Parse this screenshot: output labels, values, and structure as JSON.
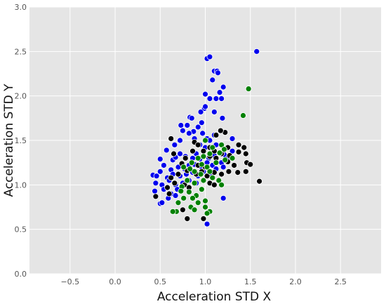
{
  "chart_data": {
    "type": "scatter",
    "title": "",
    "xlabel": "Acceleration STD X",
    "ylabel": "Acceleration STD Y",
    "xlim": [
      -0.95,
      2.95
    ],
    "ylim": [
      0.0,
      3.0
    ],
    "xticks": [
      -0.5,
      0.0,
      0.5,
      1.0,
      1.5,
      2.0,
      2.5
    ],
    "xtick_labels": [
      "−0.5",
      "0.0",
      "0.5",
      "1.0",
      "1.5",
      "2.0",
      "2.5"
    ],
    "yticks": [
      0.0,
      0.5,
      1.0,
      1.5,
      2.0,
      2.5,
      3.0
    ],
    "ytick_labels": [
      "0.0",
      "0.5",
      "1.0",
      "1.5",
      "2.0",
      "2.5",
      "3.0"
    ],
    "grid": true,
    "background": "#e5e5e5",
    "grid_color": "#ffffff",
    "series": [
      {
        "color": "#0000ee",
        "points": [
          [
            1.57,
            2.5
          ],
          [
            1.02,
            2.42
          ],
          [
            1.05,
            2.44
          ],
          [
            1.1,
            2.28
          ],
          [
            1.13,
            2.28
          ],
          [
            1.14,
            2.26
          ],
          [
            1.08,
            2.18
          ],
          [
            1.2,
            2.1
          ],
          [
            1.16,
            2.04
          ],
          [
            1.0,
            2.02
          ],
          [
            1.05,
            1.97
          ],
          [
            1.12,
            1.97
          ],
          [
            1.18,
            1.97
          ],
          [
            0.99,
            1.86
          ],
          [
            1.0,
            1.88
          ],
          [
            0.95,
            1.82
          ],
          [
            1.1,
            1.82
          ],
          [
            0.83,
            1.76
          ],
          [
            0.85,
            1.75
          ],
          [
            1.19,
            1.75
          ],
          [
            0.8,
            1.67
          ],
          [
            0.73,
            1.67
          ],
          [
            0.92,
            1.65
          ],
          [
            0.87,
            1.6
          ],
          [
            0.75,
            1.61
          ],
          [
            0.82,
            1.58
          ],
          [
            0.96,
            1.7
          ],
          [
            0.97,
            1.58
          ],
          [
            1.1,
            1.56
          ],
          [
            1.3,
            1.52
          ],
          [
            1.02,
            1.52
          ],
          [
            1.05,
            1.5
          ],
          [
            0.88,
            1.52
          ],
          [
            0.72,
            1.5
          ],
          [
            0.66,
            1.45
          ],
          [
            0.94,
            1.45
          ],
          [
            1.0,
            1.42
          ],
          [
            1.12,
            1.45
          ],
          [
            0.57,
            1.39
          ],
          [
            0.72,
            1.35
          ],
          [
            0.78,
            1.32
          ],
          [
            0.86,
            1.3
          ],
          [
            0.64,
            1.28
          ],
          [
            0.5,
            1.29
          ],
          [
            0.67,
            1.31
          ],
          [
            0.9,
            1.35
          ],
          [
            0.94,
            1.29
          ],
          [
            1.04,
            1.3
          ],
          [
            1.1,
            1.33
          ],
          [
            1.21,
            1.34
          ],
          [
            1.3,
            1.38
          ],
          [
            0.54,
            1.22
          ],
          [
            0.62,
            1.17
          ],
          [
            0.7,
            1.2
          ],
          [
            0.77,
            1.18
          ],
          [
            0.82,
            1.22
          ],
          [
            0.88,
            1.23
          ],
          [
            0.96,
            1.2
          ],
          [
            1.02,
            1.25
          ],
          [
            1.08,
            1.22
          ],
          [
            1.18,
            1.25
          ],
          [
            1.25,
            1.3
          ],
          [
            0.42,
            1.11
          ],
          [
            0.46,
            1.1
          ],
          [
            0.5,
            1.15
          ],
          [
            0.58,
            1.08
          ],
          [
            0.64,
            1.12
          ],
          [
            0.72,
            1.1
          ],
          [
            0.79,
            1.12
          ],
          [
            0.86,
            1.14
          ],
          [
            0.92,
            1.1
          ],
          [
            0.98,
            1.15
          ],
          [
            1.06,
            1.12
          ],
          [
            1.12,
            1.18
          ],
          [
            1.2,
            1.2
          ],
          [
            0.45,
            1.02
          ],
          [
            0.52,
            1.0
          ],
          [
            0.6,
            1.05
          ],
          [
            0.67,
            1.0
          ],
          [
            0.75,
            1.02
          ],
          [
            0.82,
            1.05
          ],
          [
            0.9,
            1.02
          ],
          [
            0.44,
            0.93
          ],
          [
            0.54,
            0.95
          ],
          [
            0.62,
            0.9
          ],
          [
            0.69,
            0.95
          ],
          [
            0.59,
            0.85
          ],
          [
            0.67,
            0.88
          ],
          [
            0.5,
            0.79
          ],
          [
            0.52,
            0.8
          ],
          [
            1.02,
            0.56
          ],
          [
            1.2,
            0.85
          ]
        ]
      },
      {
        "color": "#000000",
        "points": [
          [
            1.6,
            1.04
          ],
          [
            1.22,
            1.59
          ],
          [
            1.17,
            1.61
          ],
          [
            1.12,
            1.56
          ],
          [
            1.37,
            1.45
          ],
          [
            1.43,
            1.42
          ],
          [
            1.37,
            1.37
          ],
          [
            1.45,
            1.35
          ],
          [
            1.25,
            1.42
          ],
          [
            1.05,
            1.42
          ],
          [
            1.1,
            1.38
          ],
          [
            1.18,
            1.35
          ],
          [
            1.27,
            1.33
          ],
          [
            0.62,
            1.52
          ],
          [
            0.88,
            1.48
          ],
          [
            0.92,
            1.45
          ],
          [
            0.98,
            1.38
          ],
          [
            0.86,
            1.38
          ],
          [
            0.65,
            1.35
          ],
          [
            0.78,
            1.3
          ],
          [
            1.05,
            1.32
          ],
          [
            1.12,
            1.3
          ],
          [
            1.25,
            1.26
          ],
          [
            1.32,
            1.22
          ],
          [
            1.46,
            1.25
          ],
          [
            1.5,
            1.23
          ],
          [
            1.36,
            1.14
          ],
          [
            1.45,
            1.15
          ],
          [
            1.26,
            1.15
          ],
          [
            1.18,
            1.12
          ],
          [
            1.1,
            1.14
          ],
          [
            1.02,
            1.1
          ],
          [
            0.96,
            1.15
          ],
          [
            0.9,
            1.12
          ],
          [
            0.8,
            1.16
          ],
          [
            0.7,
            1.12
          ],
          [
            0.62,
            1.08
          ],
          [
            0.85,
            1.25
          ],
          [
            0.92,
            1.22
          ],
          [
            1.0,
            1.2
          ],
          [
            0.74,
            1.24
          ],
          [
            0.66,
            1.02
          ],
          [
            0.77,
            1.0
          ],
          [
            0.58,
            0.97
          ],
          [
            0.82,
            0.97
          ],
          [
            1.05,
            1.02
          ],
          [
            1.1,
            1.0
          ],
          [
            0.45,
            0.87
          ],
          [
            0.6,
            0.9
          ],
          [
            0.75,
            0.72
          ],
          [
            0.8,
            0.62
          ],
          [
            0.98,
            0.62
          ]
        ]
      },
      {
        "color": "#008000",
        "points": [
          [
            1.48,
            2.08
          ],
          [
            1.42,
            1.78
          ],
          [
            1.0,
            1.5
          ],
          [
            1.08,
            1.42
          ],
          [
            1.18,
            1.45
          ],
          [
            1.21,
            1.4
          ],
          [
            1.22,
            1.28
          ],
          [
            1.3,
            1.3
          ],
          [
            1.16,
            1.36
          ],
          [
            0.98,
            1.32
          ],
          [
            1.05,
            1.35
          ],
          [
            0.92,
            1.3
          ],
          [
            0.85,
            1.25
          ],
          [
            0.96,
            1.23
          ],
          [
            1.02,
            1.2
          ],
          [
            1.12,
            1.25
          ],
          [
            0.88,
            1.15
          ],
          [
            0.83,
            1.18
          ],
          [
            0.76,
            1.2
          ],
          [
            0.95,
            1.12
          ],
          [
            1.05,
            1.15
          ],
          [
            1.15,
            1.05
          ],
          [
            1.18,
            1.0
          ],
          [
            1.08,
            1.08
          ],
          [
            0.98,
            1.05
          ],
          [
            0.88,
            1.02
          ],
          [
            0.8,
            1.05
          ],
          [
            0.74,
            0.98
          ],
          [
            0.82,
            0.92
          ],
          [
            0.9,
            0.88
          ],
          [
            0.96,
            0.95
          ],
          [
            0.86,
            0.85
          ],
          [
            0.92,
            0.8
          ],
          [
            1.0,
            0.82
          ],
          [
            0.76,
            0.85
          ],
          [
            0.7,
            0.8
          ],
          [
            0.84,
            0.75
          ],
          [
            0.88,
            0.72
          ],
          [
            0.68,
            0.7
          ],
          [
            0.64,
            0.7
          ],
          [
            1.0,
            0.75
          ],
          [
            1.05,
            0.7
          ],
          [
            1.02,
            0.68
          ],
          [
            0.73,
            0.93
          ]
        ]
      }
    ]
  }
}
